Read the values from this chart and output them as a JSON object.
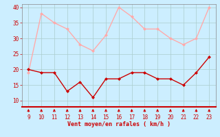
{
  "hours": [
    9,
    10,
    11,
    12,
    13,
    14,
    15,
    16,
    17,
    18,
    19,
    20,
    21,
    22,
    23
  ],
  "wind_avg": [
    20,
    19,
    19,
    13,
    16,
    11,
    17,
    17,
    19,
    19,
    17,
    17,
    15,
    19,
    24
  ],
  "wind_gust": [
    19,
    38,
    35,
    33,
    28,
    26,
    31,
    40,
    37,
    33,
    33,
    30,
    28,
    30,
    40
  ],
  "avg_color": "#cc0000",
  "gust_color": "#ffaaaa",
  "bg_color": "#cceeff",
  "grid_color": "#aacccc",
  "xlabel": "Vent moyen/en rafales ( km/h )",
  "xlabel_color": "#cc0000",
  "tick_color": "#cc0000",
  "ytick_color": "#cc0000",
  "ylim": [
    8,
    41
  ],
  "yticks": [
    10,
    15,
    20,
    25,
    30,
    35,
    40
  ],
  "xlim": [
    8.5,
    23.5
  ],
  "arrow_color": "#cc0000",
  "spine_bottom_color": "#cc0000",
  "spine_other_color": "#888888"
}
